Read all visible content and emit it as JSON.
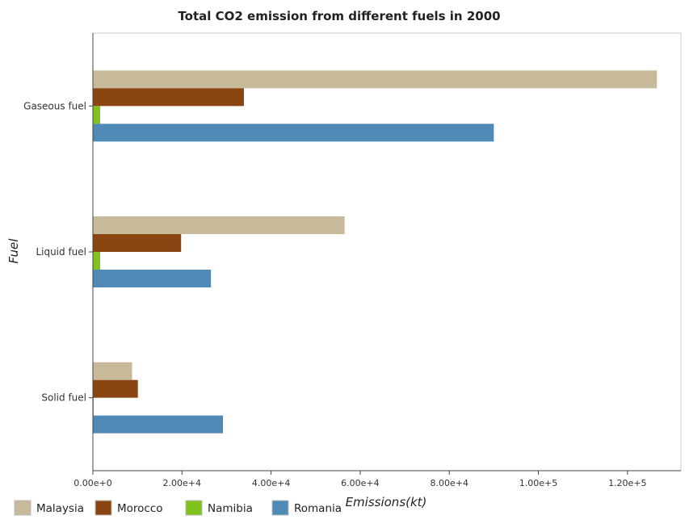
{
  "chart_data": {
    "type": "bar",
    "orientation": "horizontal",
    "title": "Total CO2 emission from different fuels in 2000",
    "xlabel": "Emissions(kt)",
    "ylabel": "Fuel",
    "categories": [
      "Gaseous fuel",
      "Liquid fuel",
      "Solid fuel"
    ],
    "xlim": [
      0,
      132000
    ],
    "xticks": [
      0,
      20000,
      40000,
      60000,
      80000,
      100000,
      120000
    ],
    "xtick_labels": [
      "0.00e+0",
      "2.00e+4",
      "4.00e+4",
      "6.00e+4",
      "8.00e+4",
      "1.00e+5",
      "1.20e+5"
    ],
    "series": [
      {
        "name": "Malaysia",
        "color": "#c8b99a",
        "values": [
          126600,
          56500,
          8800
        ]
      },
      {
        "name": "Morocco",
        "color": "#8b4513",
        "values": [
          33900,
          19800,
          10100
        ]
      },
      {
        "name": "Namibia",
        "color": "#7fc31c",
        "values": [
          1650,
          1650,
          10
        ]
      },
      {
        "name": "Romania",
        "color": "#4e8ab5",
        "values": [
          90000,
          26500,
          29200
        ]
      }
    ],
    "legend_position": "bottom",
    "grid": false
  }
}
